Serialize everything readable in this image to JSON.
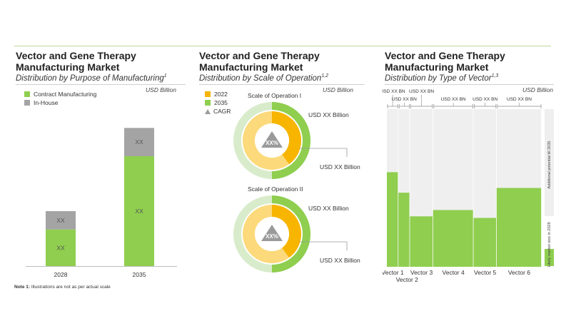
{
  "panels": {
    "p1": {
      "title_line1": "Vector and Gene Therapy",
      "title_line2": "Manufacturing Market",
      "subtitle": "Distribution by Purpose of Manufacturing",
      "subtitle_sup": "1",
      "unit": "USD Billion"
    },
    "p2": {
      "title_line1": "Vector and Gene Therapy",
      "title_line2": "Manufacturing Market",
      "subtitle": "Distribution by Scale of Operation",
      "subtitle_sup": "1,2",
      "unit": "USD Billion"
    },
    "p3": {
      "title_line1": "Vector and Gene Therapy",
      "title_line2": "Manufacturing Market",
      "subtitle": "Distribution by Type of Vector",
      "subtitle_sup": "1,3",
      "unit": "USD Billion"
    }
  },
  "note": {
    "label": "Note 1:",
    "text": "Illustrations are not as per actual scale"
  },
  "colors": {
    "green": "#8fce4f",
    "gray": "#a4a4a4",
    "orange": "#f7b500",
    "light_orange": "#fcd97a",
    "light_green": "#d8eccb",
    "pale_green": "#eef7e8",
    "track": "#efefef"
  },
  "chart_data": [
    {
      "type": "bar",
      "stacked": true,
      "categories": [
        "2028",
        "2035"
      ],
      "series": [
        {
          "name": "Contract Manufacturing",
          "values": [
            22,
            66
          ],
          "labels": [
            "XX",
            "XX"
          ],
          "color": "#8fce4f"
        },
        {
          "name": "In-House",
          "values": [
            11,
            17
          ],
          "labels": [
            "XX",
            "XX"
          ],
          "color": "#a4a4a4"
        }
      ],
      "ylim": [
        0,
        90
      ],
      "legend_position": "top-left",
      "grid": false
    },
    {
      "type": "pie",
      "legend": [
        {
          "name": "2022",
          "color": "#f7b500"
        },
        {
          "name": "2035",
          "color": "#8fce4f"
        },
        {
          "name": "CAGR",
          "icon": "triangle"
        }
      ],
      "rings": [
        {
          "title": "Scale of Operation I",
          "share_2022": 0.4,
          "share_2035": 0.5,
          "label_2022": "USD XX Billion",
          "label_2035": "USD XX Billion",
          "cagr_label": "XX%"
        },
        {
          "title": "Scale of Operation II",
          "share_2022": 0.4,
          "share_2035": 0.5,
          "label_2022": "USD XX Billion",
          "label_2035": "USD XX Billion",
          "cagr_label": "XX%"
        }
      ]
    },
    {
      "type": "bar",
      "variant": "marimekko",
      "categories": [
        "Vector 1",
        "Vector 2",
        "Vector 3",
        "Vector 4",
        "Vector 5",
        "Vector 6"
      ],
      "widths": [
        1,
        1,
        2,
        3.5,
        2,
        3.9
      ],
      "likely_share": [
        0.6,
        0.47,
        0.32,
        0.36,
        0.31,
        0.5
      ],
      "top_labels": [
        "USD XX BN",
        "USD XX BN",
        "USD XX BN",
        "USD XX BN",
        "USD XX BN",
        "USD XX BN"
      ],
      "legend": [
        {
          "name": "Additional potential till 2035",
          "color": "#efefef"
        },
        {
          "name": "Likely market size in 2028",
          "color": "#8fce4f"
        }
      ]
    }
  ]
}
